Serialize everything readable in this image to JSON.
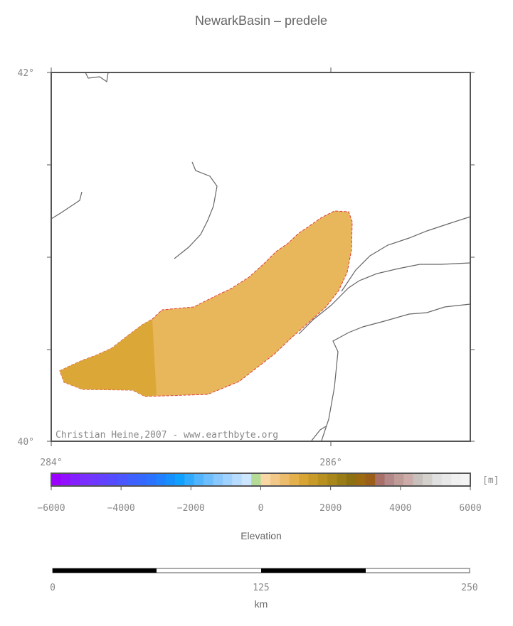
{
  "header": {
    "title": "NewarkBasin – predele"
  },
  "map": {
    "lat_labels": [
      "42°",
      "40°"
    ],
    "lon_labels": [
      "284°",
      "286°"
    ],
    "credit": "Christian Heine,2007 - www.earthbyte.org"
  },
  "colorbar": {
    "unit": "[m]",
    "label": "Elevation",
    "ticks": [
      "−6000",
      "−4000",
      "−2000",
      "0",
      "2000",
      "4000",
      "6000"
    ]
  },
  "scalebar": {
    "ticks": [
      "0",
      "125",
      "250"
    ],
    "label": "km"
  }
}
